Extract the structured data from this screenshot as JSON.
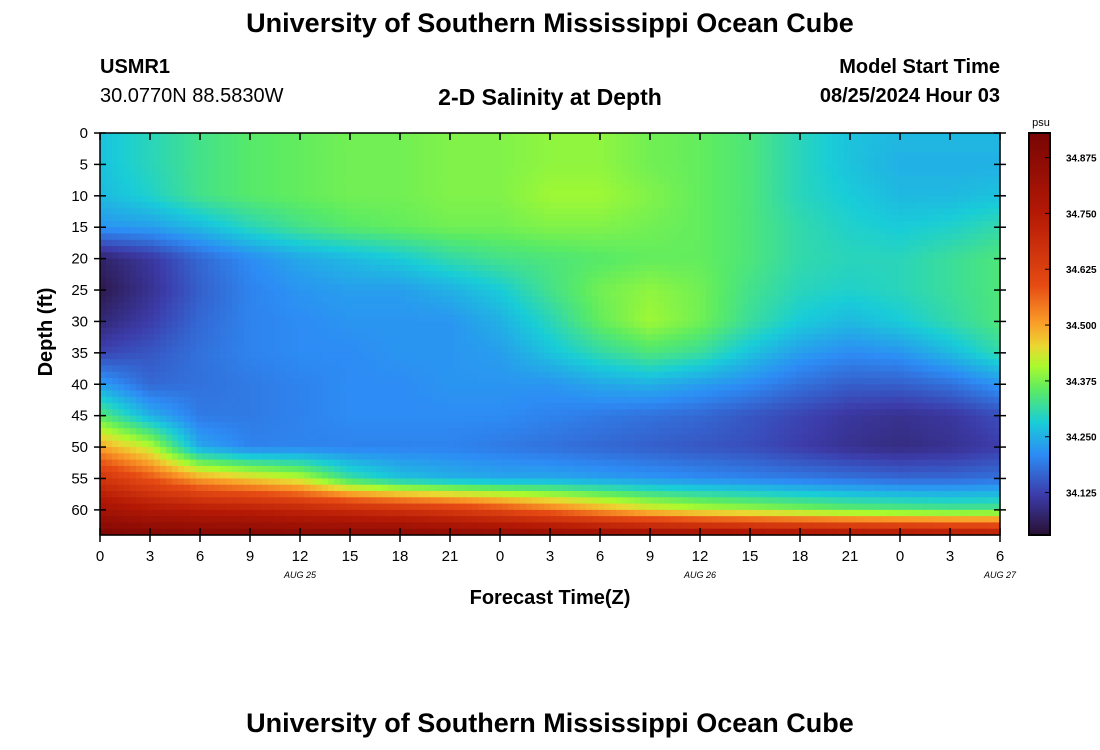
{
  "header": {
    "title": "University of Southern Mississippi Ocean Cube",
    "station_id": "USMR1",
    "station_coords": "30.0770N  88.5830W",
    "chart_title": "2-D Salinity at Depth",
    "start_label": "Model Start Time",
    "start_value": "08/25/2024 Hour 03"
  },
  "footer": {
    "title": "University of Southern Mississippi Ocean Cube"
  },
  "chart_data": {
    "type": "heatmap",
    "title": "2-D Salinity at Depth",
    "xlabel": "Forecast Time(Z)",
    "ylabel": "Depth (ft)",
    "x_tick_labels": [
      "0",
      "3",
      "6",
      "9",
      "12",
      "15",
      "18",
      "21",
      "0",
      "3",
      "6",
      "9",
      "12",
      "15",
      "18",
      "21",
      "0",
      "3",
      "6"
    ],
    "date_labels": [
      {
        "label": "AUG 25",
        "hour": 12
      },
      {
        "label": "AUG 26",
        "hour": 36
      },
      {
        "label": "AUG 27",
        "hour": 54
      }
    ],
    "xlim": [
      0,
      54
    ],
    "ylim": [
      0,
      64
    ],
    "y_ticks": [
      0,
      5,
      10,
      15,
      20,
      25,
      30,
      35,
      40,
      45,
      50,
      55,
      60
    ],
    "colorbar": {
      "unit": "psu",
      "range": [
        34.03,
        34.93
      ],
      "tick_labels": [
        "34.875",
        "34.750",
        "34.625",
        "34.500",
        "34.375",
        "34.250",
        "34.125"
      ],
      "tick_values": [
        34.875,
        34.75,
        34.625,
        34.5,
        34.375,
        34.25,
        34.125
      ]
    },
    "grid_hours": [
      0,
      3,
      6,
      9,
      12,
      15,
      18,
      21,
      24,
      27,
      30,
      33,
      36,
      39,
      42,
      45,
      48,
      51,
      54
    ],
    "grid_depths": [
      0,
      5,
      10,
      15,
      20,
      25,
      30,
      35,
      40,
      45,
      50,
      55,
      60,
      64
    ],
    "salinity": [
      [
        34.27,
        34.3,
        34.33,
        34.35,
        34.36,
        34.37,
        34.37,
        34.38,
        34.38,
        34.39,
        34.39,
        34.37,
        34.36,
        34.34,
        34.3,
        34.27,
        34.26,
        34.26,
        34.26
      ],
      [
        34.27,
        34.3,
        34.33,
        34.35,
        34.36,
        34.37,
        34.37,
        34.38,
        34.38,
        34.39,
        34.39,
        34.37,
        34.36,
        34.34,
        34.3,
        34.27,
        34.25,
        34.25,
        34.25
      ],
      [
        34.26,
        34.29,
        34.33,
        34.35,
        34.36,
        34.37,
        34.37,
        34.38,
        34.38,
        34.4,
        34.4,
        34.38,
        34.36,
        34.34,
        34.3,
        34.28,
        34.26,
        34.26,
        34.27
      ],
      [
        34.22,
        34.23,
        34.26,
        34.3,
        34.33,
        34.35,
        34.36,
        34.37,
        34.37,
        34.38,
        34.38,
        34.37,
        34.36,
        34.34,
        34.31,
        34.29,
        34.28,
        34.29,
        34.31
      ],
      [
        34.07,
        34.11,
        34.17,
        34.21,
        34.24,
        34.26,
        34.28,
        34.31,
        34.33,
        34.34,
        34.35,
        34.36,
        34.36,
        34.34,
        34.31,
        34.3,
        34.3,
        34.32,
        34.34
      ],
      [
        34.05,
        34.1,
        34.16,
        34.2,
        34.22,
        34.23,
        34.23,
        34.25,
        34.28,
        34.33,
        34.37,
        34.39,
        34.37,
        34.33,
        34.3,
        34.29,
        34.3,
        34.32,
        34.34
      ],
      [
        34.08,
        34.12,
        34.17,
        34.2,
        34.21,
        34.22,
        34.22,
        34.22,
        34.25,
        34.3,
        34.36,
        34.4,
        34.37,
        34.32,
        34.28,
        34.26,
        34.28,
        34.31,
        34.34
      ],
      [
        34.13,
        34.15,
        34.18,
        34.2,
        34.21,
        34.21,
        34.22,
        34.22,
        34.23,
        34.27,
        34.31,
        34.34,
        34.32,
        34.27,
        34.23,
        34.21,
        34.22,
        34.26,
        34.31
      ],
      [
        34.23,
        34.17,
        34.18,
        34.19,
        34.2,
        34.21,
        34.21,
        34.22,
        34.22,
        34.22,
        34.24,
        34.25,
        34.23,
        34.21,
        34.18,
        34.16,
        34.16,
        34.18,
        34.22
      ],
      [
        34.35,
        34.25,
        34.19,
        34.19,
        34.2,
        34.21,
        34.21,
        34.21,
        34.21,
        34.2,
        34.19,
        34.18,
        34.17,
        34.15,
        34.13,
        34.11,
        34.1,
        34.11,
        34.14
      ],
      [
        34.5,
        34.42,
        34.24,
        34.2,
        34.2,
        34.2,
        34.2,
        34.2,
        34.19,
        34.18,
        34.17,
        34.16,
        34.15,
        34.14,
        34.12,
        34.1,
        34.09,
        34.1,
        34.12
      ],
      [
        34.66,
        34.58,
        34.5,
        34.46,
        34.42,
        34.32,
        34.27,
        34.25,
        34.24,
        34.24,
        34.23,
        34.22,
        34.21,
        34.2,
        34.19,
        34.18,
        34.17,
        34.17,
        34.18
      ],
      [
        34.8,
        34.76,
        34.74,
        34.73,
        34.71,
        34.69,
        34.67,
        34.64,
        34.6,
        34.55,
        34.5,
        34.45,
        34.42,
        34.4,
        34.38,
        34.36,
        34.35,
        34.34,
        34.34
      ],
      [
        34.91,
        34.9,
        34.89,
        34.89,
        34.88,
        34.88,
        34.88,
        34.87,
        34.86,
        34.85,
        34.84,
        34.83,
        34.82,
        34.81,
        34.8,
        34.79,
        34.78,
        34.77,
        34.76
      ]
    ]
  }
}
